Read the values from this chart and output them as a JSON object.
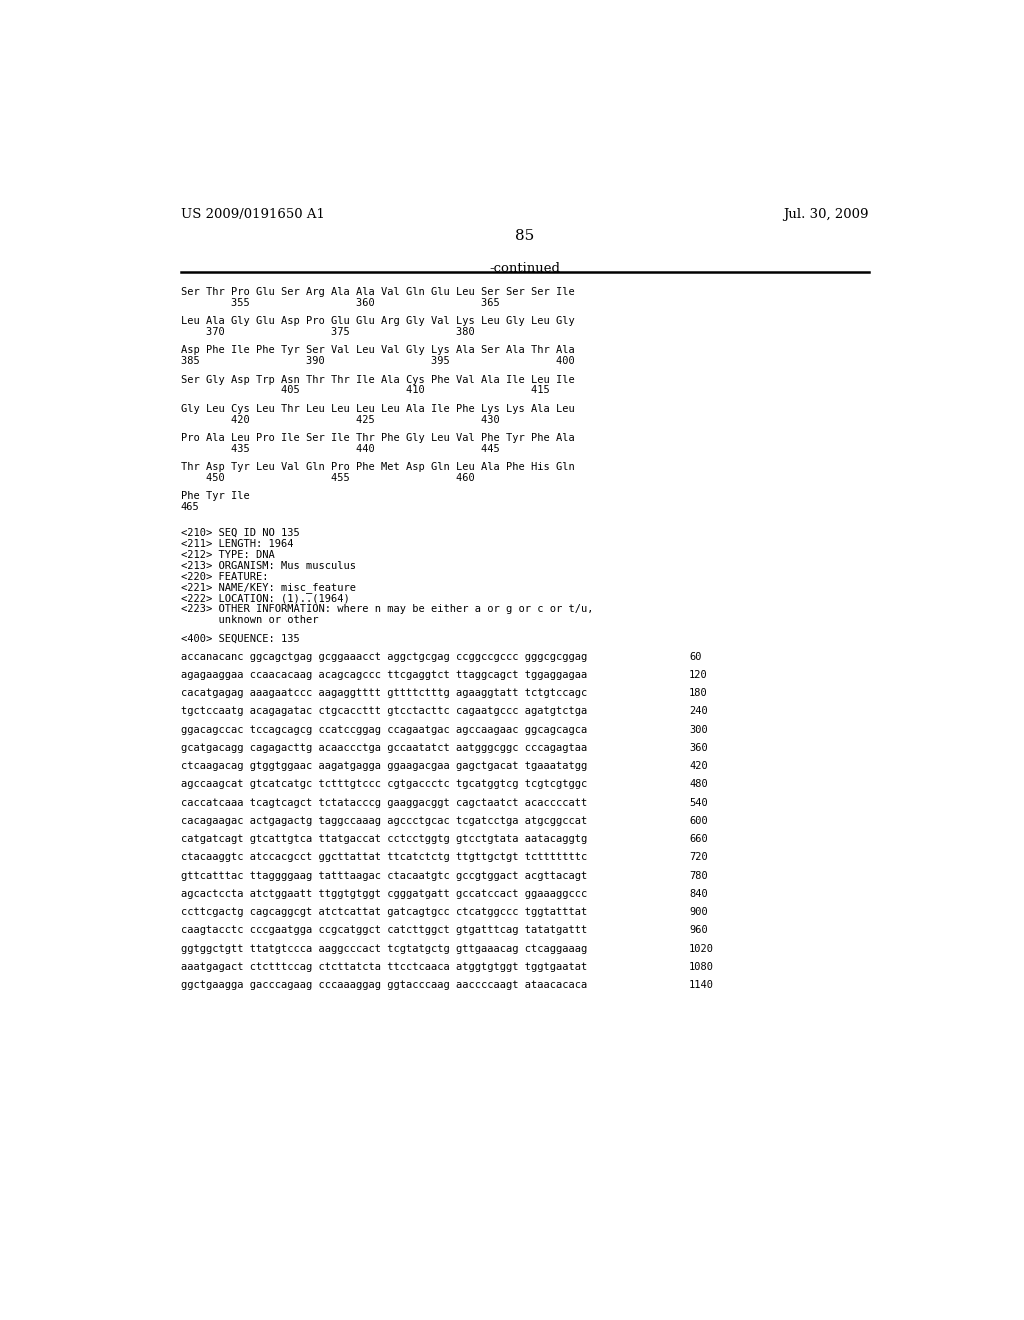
{
  "header_left": "US 2009/0191650 A1",
  "header_right": "Jul. 30, 2009",
  "page_number": "85",
  "continued_label": "-continued",
  "background_color": "#ffffff",
  "text_color": "#000000",
  "content_lines": [
    {
      "type": "aa",
      "text": "Ser Thr Pro Glu Ser Arg Ala Ala Val Gln Glu Leu Ser Ser Ser Ile"
    },
    {
      "type": "aa_num",
      "text": "        355                 360                 365"
    },
    {
      "type": "blank"
    },
    {
      "type": "aa",
      "text": "Leu Ala Gly Glu Asp Pro Glu Glu Arg Gly Val Lys Leu Gly Leu Gly"
    },
    {
      "type": "aa_num",
      "text": "    370                 375                 380"
    },
    {
      "type": "blank"
    },
    {
      "type": "aa",
      "text": "Asp Phe Ile Phe Tyr Ser Val Leu Val Gly Lys Ala Ser Ala Thr Ala"
    },
    {
      "type": "aa_num",
      "text": "385                 390                 395                 400"
    },
    {
      "type": "blank"
    },
    {
      "type": "aa",
      "text": "Ser Gly Asp Trp Asn Thr Thr Ile Ala Cys Phe Val Ala Ile Leu Ile"
    },
    {
      "type": "aa_num",
      "text": "                405                 410                 415"
    },
    {
      "type": "blank"
    },
    {
      "type": "aa",
      "text": "Gly Leu Cys Leu Thr Leu Leu Leu Leu Ala Ile Phe Lys Lys Ala Leu"
    },
    {
      "type": "aa_num",
      "text": "        420                 425                 430"
    },
    {
      "type": "blank"
    },
    {
      "type": "aa",
      "text": "Pro Ala Leu Pro Ile Ser Ile Thr Phe Gly Leu Val Phe Tyr Phe Ala"
    },
    {
      "type": "aa_num",
      "text": "        435                 440                 445"
    },
    {
      "type": "blank"
    },
    {
      "type": "aa",
      "text": "Thr Asp Tyr Leu Val Gln Pro Phe Met Asp Gln Leu Ala Phe His Gln"
    },
    {
      "type": "aa_num",
      "text": "    450                 455                 460"
    },
    {
      "type": "blank"
    },
    {
      "type": "aa",
      "text": "Phe Tyr Ile"
    },
    {
      "type": "aa_num",
      "text": "465"
    },
    {
      "type": "blank"
    },
    {
      "type": "blank"
    },
    {
      "type": "meta",
      "text": "<210> SEQ ID NO 135"
    },
    {
      "type": "meta",
      "text": "<211> LENGTH: 1964"
    },
    {
      "type": "meta",
      "text": "<212> TYPE: DNA"
    },
    {
      "type": "meta",
      "text": "<213> ORGANISM: Mus musculus"
    },
    {
      "type": "meta",
      "text": "<220> FEATURE:"
    },
    {
      "type": "meta",
      "text": "<221> NAME/KEY: misc_feature"
    },
    {
      "type": "meta",
      "text": "<222> LOCATION: (1)..(1964)"
    },
    {
      "type": "meta",
      "text": "<223> OTHER INFORMATION: where n may be either a or g or c or t/u,"
    },
    {
      "type": "meta",
      "text": "      unknown or other"
    },
    {
      "type": "blank"
    },
    {
      "type": "meta",
      "text": "<400> SEQUENCE: 135"
    },
    {
      "type": "blank"
    },
    {
      "type": "seq",
      "text": "accanacanc ggcagctgag gcggaaacct aggctgcgag ccggccgccc gggcgcggag",
      "num": "60"
    },
    {
      "type": "blank"
    },
    {
      "type": "seq",
      "text": "agagaaggaa ccaacacaag acagcagccc ttcgaggtct ttaggcagct tggaggagaa",
      "num": "120"
    },
    {
      "type": "blank"
    },
    {
      "type": "seq",
      "text": "cacatgagag aaagaatccc aagaggtttt gttttctttg agaaggtatt tctgtccagc",
      "num": "180"
    },
    {
      "type": "blank"
    },
    {
      "type": "seq",
      "text": "tgctccaatg acagagatac ctgcaccttt gtcctacttc cagaatgccc agatgtctga",
      "num": "240"
    },
    {
      "type": "blank"
    },
    {
      "type": "seq",
      "text": "ggacagccac tccagcagcg ccatccggag ccagaatgac agccaagaac ggcagcagca",
      "num": "300"
    },
    {
      "type": "blank"
    },
    {
      "type": "seq",
      "text": "gcatgacagg cagagacttg acaaccctga gccaatatct aatgggcggc cccagagtaa",
      "num": "360"
    },
    {
      "type": "blank"
    },
    {
      "type": "seq",
      "text": "ctcaagacag gtggtggaac aagatgagga ggaagacgaa gagctgacat tgaaatatgg",
      "num": "420"
    },
    {
      "type": "blank"
    },
    {
      "type": "seq",
      "text": "agccaagcat gtcatcatgc tctttgtccc cgtgaccctc tgcatggtcg tcgtcgtggc",
      "num": "480"
    },
    {
      "type": "blank"
    },
    {
      "type": "seq",
      "text": "caccatcaaa tcagtcagct tctatacccg gaaggacggt cagctaatct acaccccatt",
      "num": "540"
    },
    {
      "type": "blank"
    },
    {
      "type": "seq",
      "text": "cacagaagac actgagactg taggccaaag agccctgcac tcgatcctga atgcggccat",
      "num": "600"
    },
    {
      "type": "blank"
    },
    {
      "type": "seq",
      "text": "catgatcagt gtcattgtca ttatgaccat cctcctggtg gtcctgtata aatacaggtg",
      "num": "660"
    },
    {
      "type": "blank"
    },
    {
      "type": "seq",
      "text": "ctacaaggtc atccacgcct ggcttattat ttcatctctg ttgttgctgt tctttttttc",
      "num": "720"
    },
    {
      "type": "blank"
    },
    {
      "type": "seq",
      "text": "gttcatttac ttaggggaag tatttaagac ctacaatgtc gccgtggact acgttacagt",
      "num": "780"
    },
    {
      "type": "blank"
    },
    {
      "type": "seq",
      "text": "agcactccta atctggaatt ttggtgtggt cgggatgatt gccatccact ggaaaggccc",
      "num": "840"
    },
    {
      "type": "blank"
    },
    {
      "type": "seq",
      "text": "ccttcgactg cagcaggcgt atctcattat gatcagtgcc ctcatggccc tggtatttat",
      "num": "900"
    },
    {
      "type": "blank"
    },
    {
      "type": "seq",
      "text": "caagtacctc cccgaatgga ccgcatggct catcttggct gtgatttcag tatatgattt",
      "num": "960"
    },
    {
      "type": "blank"
    },
    {
      "type": "seq",
      "text": "ggtggctgtt ttatgtccca aaggcccact tcgtatgctg gttgaaacag ctcaggaaag",
      "num": "1020"
    },
    {
      "type": "blank"
    },
    {
      "type": "seq",
      "text": "aaatgagact ctctttccag ctcttatcta ttcctcaaca atggtgtggt tggtgaatat",
      "num": "1080"
    },
    {
      "type": "blank"
    },
    {
      "type": "seq",
      "text": "ggctgaagga gacccagaag cccaaaggag ggtacccaag aaccccaagt ataacacaca",
      "num": "1140"
    }
  ]
}
